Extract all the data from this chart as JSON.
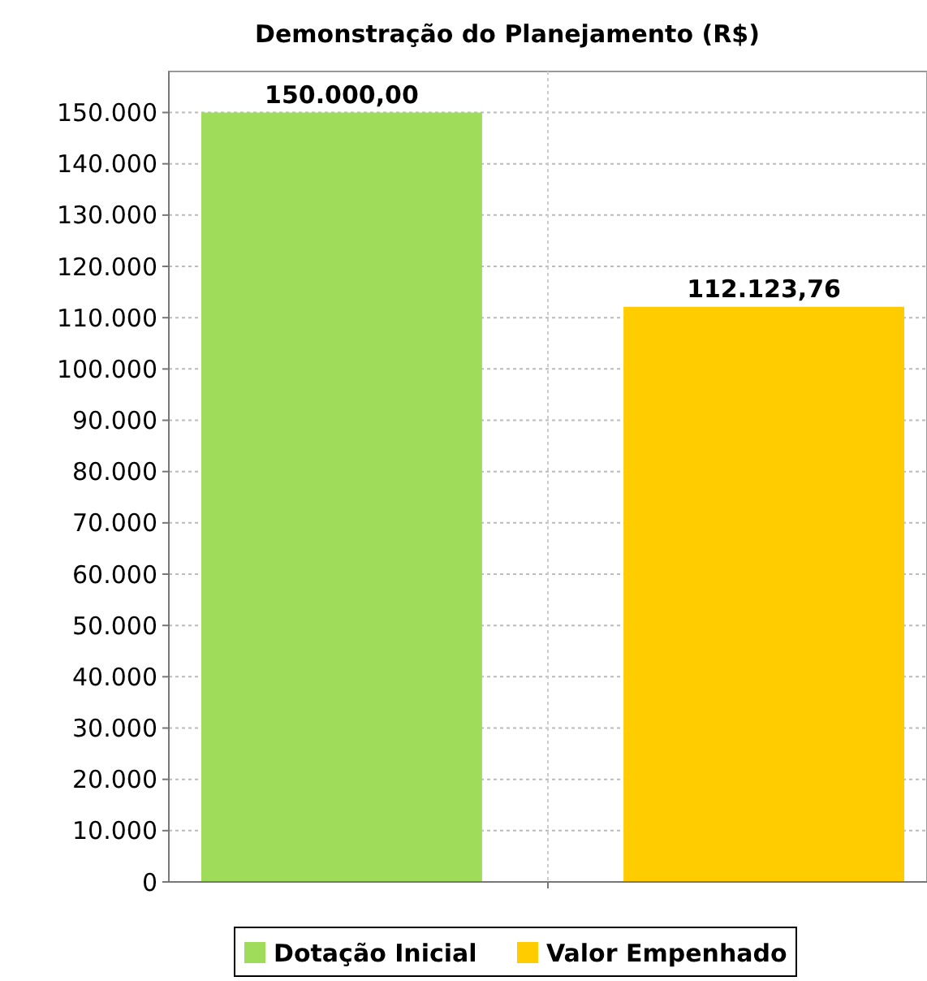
{
  "chart_data": {
    "type": "bar",
    "title": "Demonstração do Planejamento (R$)",
    "categories": [
      null
    ],
    "series": [
      {
        "name": "Dotação Inicial",
        "color": "#9edc5a",
        "values": [
          150000
        ],
        "value_labels": [
          "150.000,00"
        ]
      },
      {
        "name": "Valor Empenhado",
        "color": "#ffcc00",
        "values": [
          112123.76
        ],
        "value_labels": [
          "112.123,76"
        ]
      }
    ],
    "ylim": [
      0,
      158000
    ],
    "yticks": [
      {
        "value": 0,
        "label": "0"
      },
      {
        "value": 10000,
        "label": "10.000"
      },
      {
        "value": 20000,
        "label": "20.000"
      },
      {
        "value": 30000,
        "label": "30.000"
      },
      {
        "value": 40000,
        "label": "40.000"
      },
      {
        "value": 50000,
        "label": "50.000"
      },
      {
        "value": 60000,
        "label": "60.000"
      },
      {
        "value": 70000,
        "label": "70.000"
      },
      {
        "value": 80000,
        "label": "80.000"
      },
      {
        "value": 90000,
        "label": "90.000"
      },
      {
        "value": 100000,
        "label": "100.000"
      },
      {
        "value": 110000,
        "label": "110.000"
      },
      {
        "value": 120000,
        "label": "120.000"
      },
      {
        "value": 130000,
        "label": "130.000"
      },
      {
        "value": 140000,
        "label": "140.000"
      },
      {
        "value": 150000,
        "label": "150.000"
      }
    ],
    "grid": true,
    "legend": "bottom"
  }
}
